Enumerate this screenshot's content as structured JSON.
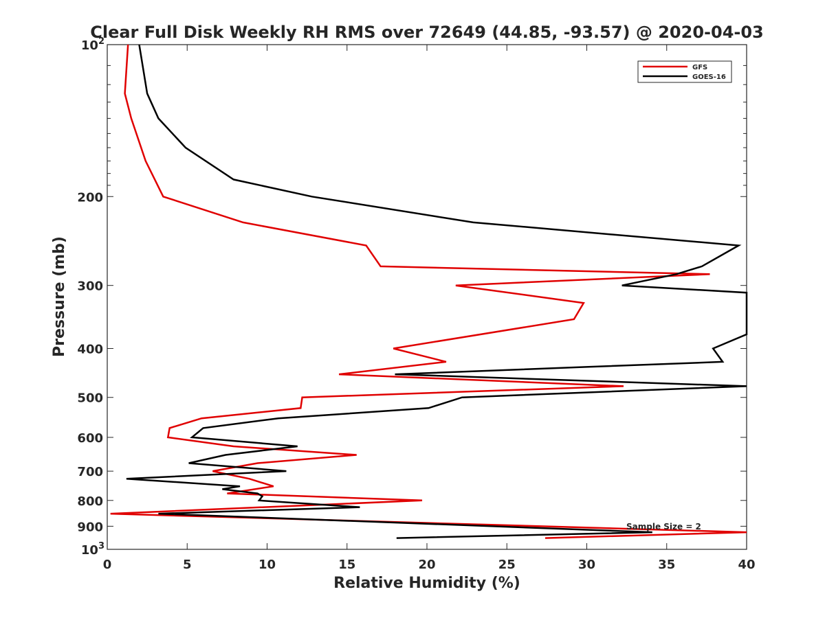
{
  "chart_data": {
    "type": "line",
    "title": "Clear Full Disk Weekly RH RMS over 72649 (44.85, -93.57) @ 2020-04-03",
    "xlabel": "Relative Humidity (%)",
    "ylabel": "Pressure (mb)",
    "xlim": [
      0,
      40
    ],
    "ylim": [
      100,
      1000
    ],
    "y_scale": "log",
    "y_reversed": true,
    "x_ticks": [
      "0",
      "5",
      "10",
      "15",
      "20",
      "25",
      "30",
      "35",
      "40"
    ],
    "y_ticks": [
      {
        "value": 100,
        "label": "10",
        "sup": "2"
      },
      {
        "value": 200,
        "label": "200"
      },
      {
        "value": 300,
        "label": "300"
      },
      {
        "value": 400,
        "label": "400"
      },
      {
        "value": 500,
        "label": "500"
      },
      {
        "value": 600,
        "label": "600"
      },
      {
        "value": 700,
        "label": "700"
      },
      {
        "value": 800,
        "label": "800"
      },
      {
        "value": 900,
        "label": "900"
      },
      {
        "value": 1000,
        "label": "10",
        "sup": "3"
      }
    ],
    "grid": false,
    "legend_position": "top-right",
    "annotation": "Sample Size = 2",
    "series": [
      {
        "name": "GFS",
        "color": "#e00000",
        "points": [
          [
            1.3,
            100
          ],
          [
            1.1,
            125
          ],
          [
            1.5,
            140
          ],
          [
            2.4,
            170
          ],
          [
            3.5,
            200
          ],
          [
            8.5,
            225
          ],
          [
            16.2,
            250
          ],
          [
            17.1,
            275
          ],
          [
            37.7,
            285
          ],
          [
            21.8,
            300
          ],
          [
            29.8,
            325
          ],
          [
            29.2,
            350
          ],
          [
            17.9,
            400
          ],
          [
            21.2,
            425
          ],
          [
            14.5,
            450
          ],
          [
            32.3,
            475
          ],
          [
            12.2,
            500
          ],
          [
            12.1,
            525
          ],
          [
            5.9,
            550
          ],
          [
            3.9,
            575
          ],
          [
            3.8,
            600
          ],
          [
            7.9,
            625
          ],
          [
            15.6,
            650
          ],
          [
            9.4,
            675
          ],
          [
            6.6,
            700
          ],
          [
            8.9,
            725
          ],
          [
            10.4,
            750
          ],
          [
            7.5,
            775
          ],
          [
            19.7,
            800
          ],
          [
            0.2,
            850
          ],
          [
            40.0,
            925
          ],
          [
            27.4,
            950
          ]
        ]
      },
      {
        "name": "GOES-16",
        "color": "#000000",
        "points": [
          [
            2.0,
            100
          ],
          [
            2.5,
            125
          ],
          [
            3.2,
            140
          ],
          [
            4.9,
            160
          ],
          [
            7.9,
            185
          ],
          [
            12.8,
            200
          ],
          [
            22.9,
            225
          ],
          [
            39.5,
            250
          ],
          [
            37.2,
            275
          ],
          [
            35.6,
            285
          ],
          [
            32.2,
            300
          ],
          [
            40.0,
            310
          ],
          [
            40.0,
            375
          ],
          [
            37.9,
            400
          ],
          [
            38.5,
            425
          ],
          [
            30.1,
            435
          ],
          [
            18.0,
            450
          ],
          [
            40.0,
            475
          ],
          [
            22.2,
            500
          ],
          [
            20.1,
            525
          ],
          [
            10.7,
            550
          ],
          [
            6.0,
            575
          ],
          [
            5.3,
            600
          ],
          [
            11.9,
            625
          ],
          [
            7.4,
            650
          ],
          [
            5.1,
            675
          ],
          [
            11.2,
            700
          ],
          [
            1.2,
            725
          ],
          [
            8.3,
            750
          ],
          [
            7.2,
            760
          ],
          [
            9.4,
            775
          ],
          [
            9.7,
            785
          ],
          [
            9.5,
            800
          ],
          [
            15.8,
            825
          ],
          [
            3.2,
            850
          ],
          [
            34.1,
            925
          ],
          [
            18.1,
            950
          ]
        ]
      }
    ]
  }
}
